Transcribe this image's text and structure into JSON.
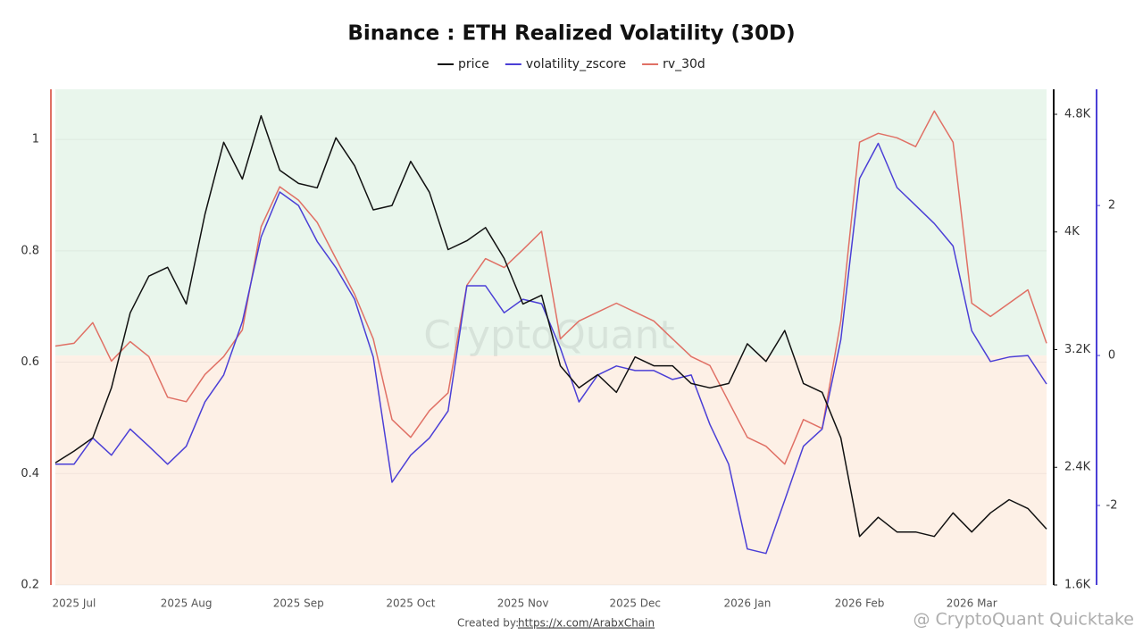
{
  "chart_data": {
    "type": "line",
    "title": "Binance : ETH Realized Volatility (30D)",
    "categories": [
      null,
      "2025 Jul",
      null,
      null,
      null,
      null,
      null,
      "2025 Aug",
      null,
      null,
      null,
      null,
      null,
      "2025 Sep",
      null,
      null,
      null,
      null,
      null,
      "2025 Oct",
      null,
      null,
      null,
      null,
      null,
      "2025 Nov",
      null,
      null,
      null,
      null,
      null,
      "2025 Dec",
      null,
      null,
      null,
      null,
      null,
      "2026 Jan",
      null,
      null,
      null,
      null,
      null,
      "2026 Feb",
      null,
      null,
      null,
      null,
      null,
      "2026 Mar",
      null,
      null,
      null,
      null
    ],
    "series": [
      {
        "name": "price",
        "color": "#111111",
        "axis": "y2",
        "values": [
          2430,
          2510,
          2600,
          2940,
          3450,
          3700,
          3760,
          3510,
          4120,
          4610,
          4360,
          4790,
          4420,
          4330,
          4300,
          4640,
          4450,
          4150,
          4180,
          4480,
          4270,
          3880,
          3940,
          4030,
          3820,
          3510,
          3570,
          3090,
          2940,
          3030,
          2910,
          3150,
          3090,
          3090,
          2970,
          2940,
          2970,
          3240,
          3120,
          3330,
          2970,
          2910,
          2600,
          1930,
          2060,
          1960,
          1960,
          1930,
          2090,
          1960,
          2090,
          2180,
          2120,
          1980
        ]
      },
      {
        "name": "volatility_zscore",
        "color": "#4b3fd6",
        "axis": "y3",
        "values": [
          -1.45,
          -1.45,
          -1.1,
          -1.33,
          -0.98,
          -1.21,
          -1.45,
          -1.21,
          -0.62,
          -0.26,
          0.45,
          1.58,
          2.18,
          2.0,
          1.52,
          1.17,
          0.75,
          -0.02,
          -1.69,
          -1.33,
          -1.1,
          -0.74,
          0.93,
          0.93,
          0.57,
          0.75,
          0.69,
          0.1,
          -0.62,
          -0.26,
          -0.14,
          -0.2,
          -0.2,
          -0.32,
          -0.26,
          -0.92,
          -1.45,
          -2.58,
          -2.64,
          -1.93,
          -1.21,
          -0.98,
          0.21,
          2.36,
          2.83,
          2.24,
          2.0,
          1.76,
          1.46,
          0.33,
          -0.08,
          -0.02,
          0,
          -0.38
        ]
      },
      {
        "name": "rv_30d",
        "color": "#e07065",
        "values": [
          0.629,
          0.634,
          0.671,
          0.602,
          0.637,
          0.61,
          0.537,
          0.529,
          0.578,
          0.61,
          0.658,
          0.843,
          0.915,
          0.891,
          0.851,
          0.786,
          0.722,
          0.642,
          0.497,
          0.465,
          0.513,
          0.545,
          0.738,
          0.786,
          0.77,
          0.802,
          0.835,
          0.642,
          0.674,
          0.69,
          0.706,
          0.69,
          0.674,
          0.642,
          0.61,
          0.594,
          0.529,
          0.465,
          0.449,
          0.417,
          0.497,
          0.481,
          0.674,
          0.995,
          1.011,
          1.003,
          0.987,
          1.051,
          0.995,
          0.706,
          0.682,
          0.706,
          0.73,
          0.634
        ]
      }
    ],
    "ylim": [
      0.2,
      1.09
    ],
    "yticks": [
      0.2,
      0.4,
      0.6,
      0.8,
      1
    ],
    "y2lim": [
      1600,
      4970
    ],
    "y2ticks": [
      {
        "value": 1600,
        "label": "1.6K"
      },
      {
        "value": 2400,
        "label": "2.4K"
      },
      {
        "value": 3200,
        "label": "3.2K"
      },
      {
        "value": 4000,
        "label": "4K"
      },
      {
        "value": 4800,
        "label": "4.8K"
      }
    ],
    "y3lim": [
      -3.06,
      3.55
    ],
    "y3ticks": [
      -2,
      0,
      2
    ],
    "grid": true,
    "footer_prefix": "Created by:",
    "footer_link": "https://x.com/ArabxChain",
    "watermark": "CryptoQuant",
    "quicktake": "@ CryptoQuant Quicktake"
  }
}
